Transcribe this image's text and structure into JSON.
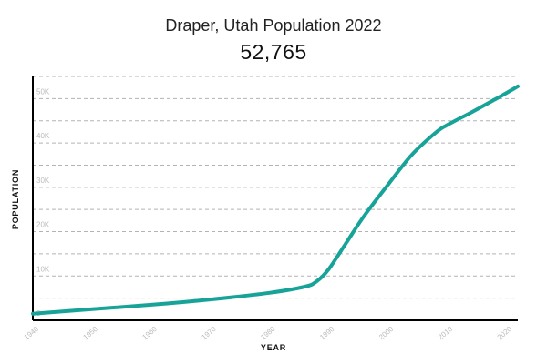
{
  "chart_data": {
    "type": "line",
    "title": "Draper, Utah Population 2022",
    "headline_value": "52,765",
    "xlabel": "YEAR",
    "ylabel": "POPULATION",
    "xlim": [
      1940,
      2022
    ],
    "ylim": [
      0,
      55000
    ],
    "x_ticks": [
      1940,
      1950,
      1960,
      1970,
      1980,
      1990,
      2000,
      2010,
      2020
    ],
    "x_tick_labels": [
      "1940",
      "1950",
      "1960",
      "1970",
      "1980",
      "1990",
      "2000",
      "2010",
      "2020"
    ],
    "y_ticks": [
      0,
      10000,
      20000,
      30000,
      40000,
      50000
    ],
    "y_tick_labels": [
      "0",
      "10K",
      "20K",
      "30K",
      "40K",
      "50K"
    ],
    "grid": true,
    "series": [
      {
        "color": "#17a398",
        "x": [
          1940,
          1950,
          1960,
          1970,
          1980,
          1986,
          1988,
          1990,
          1993,
          1996,
          2000,
          2004,
          2008,
          2010,
          2014,
          2018,
          2022
        ],
        "y": [
          1500,
          2500,
          3500,
          4700,
          6200,
          7600,
          8800,
          11500,
          17500,
          23500,
          30500,
          37200,
          42200,
          44000,
          46800,
          49700,
          52765
        ]
      }
    ]
  }
}
